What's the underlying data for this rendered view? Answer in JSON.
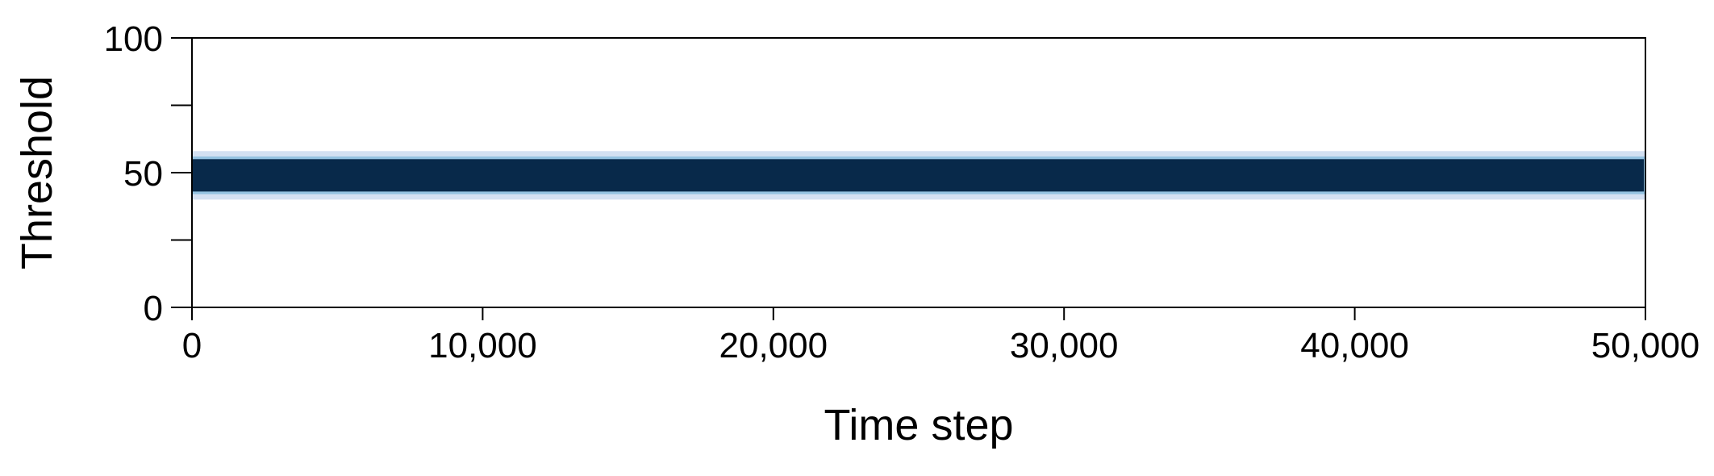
{
  "chart_data": {
    "type": "area",
    "title": "",
    "xlabel": "Time step",
    "ylabel": "Threshold",
    "xlim": [
      0,
      50000
    ],
    "ylim": [
      0,
      100
    ],
    "x_ticks": [
      0,
      10000,
      20000,
      30000,
      40000,
      50000
    ],
    "x_tick_labels": [
      "0",
      "10,000",
      "20,000",
      "30,000",
      "40,000",
      "50,000"
    ],
    "y_ticks": [
      0,
      25,
      50,
      75,
      100
    ],
    "y_tick_labels": [
      "0",
      "",
      "50",
      "",
      "100"
    ],
    "grid": false,
    "legend": "none",
    "bands": [
      {
        "x": [
          0,
          50000
        ],
        "lower": 40,
        "upper": 58,
        "color": "#aec7e8",
        "opacity": 0.55
      },
      {
        "x": [
          0,
          50000
        ],
        "lower": 42,
        "upper": 56,
        "color": "#6baed6",
        "opacity": 0.6
      }
    ],
    "series": [
      {
        "x": [
          0,
          50000
        ],
        "lower": 43,
        "upper": 55,
        "color": "#08294a"
      }
    ]
  }
}
